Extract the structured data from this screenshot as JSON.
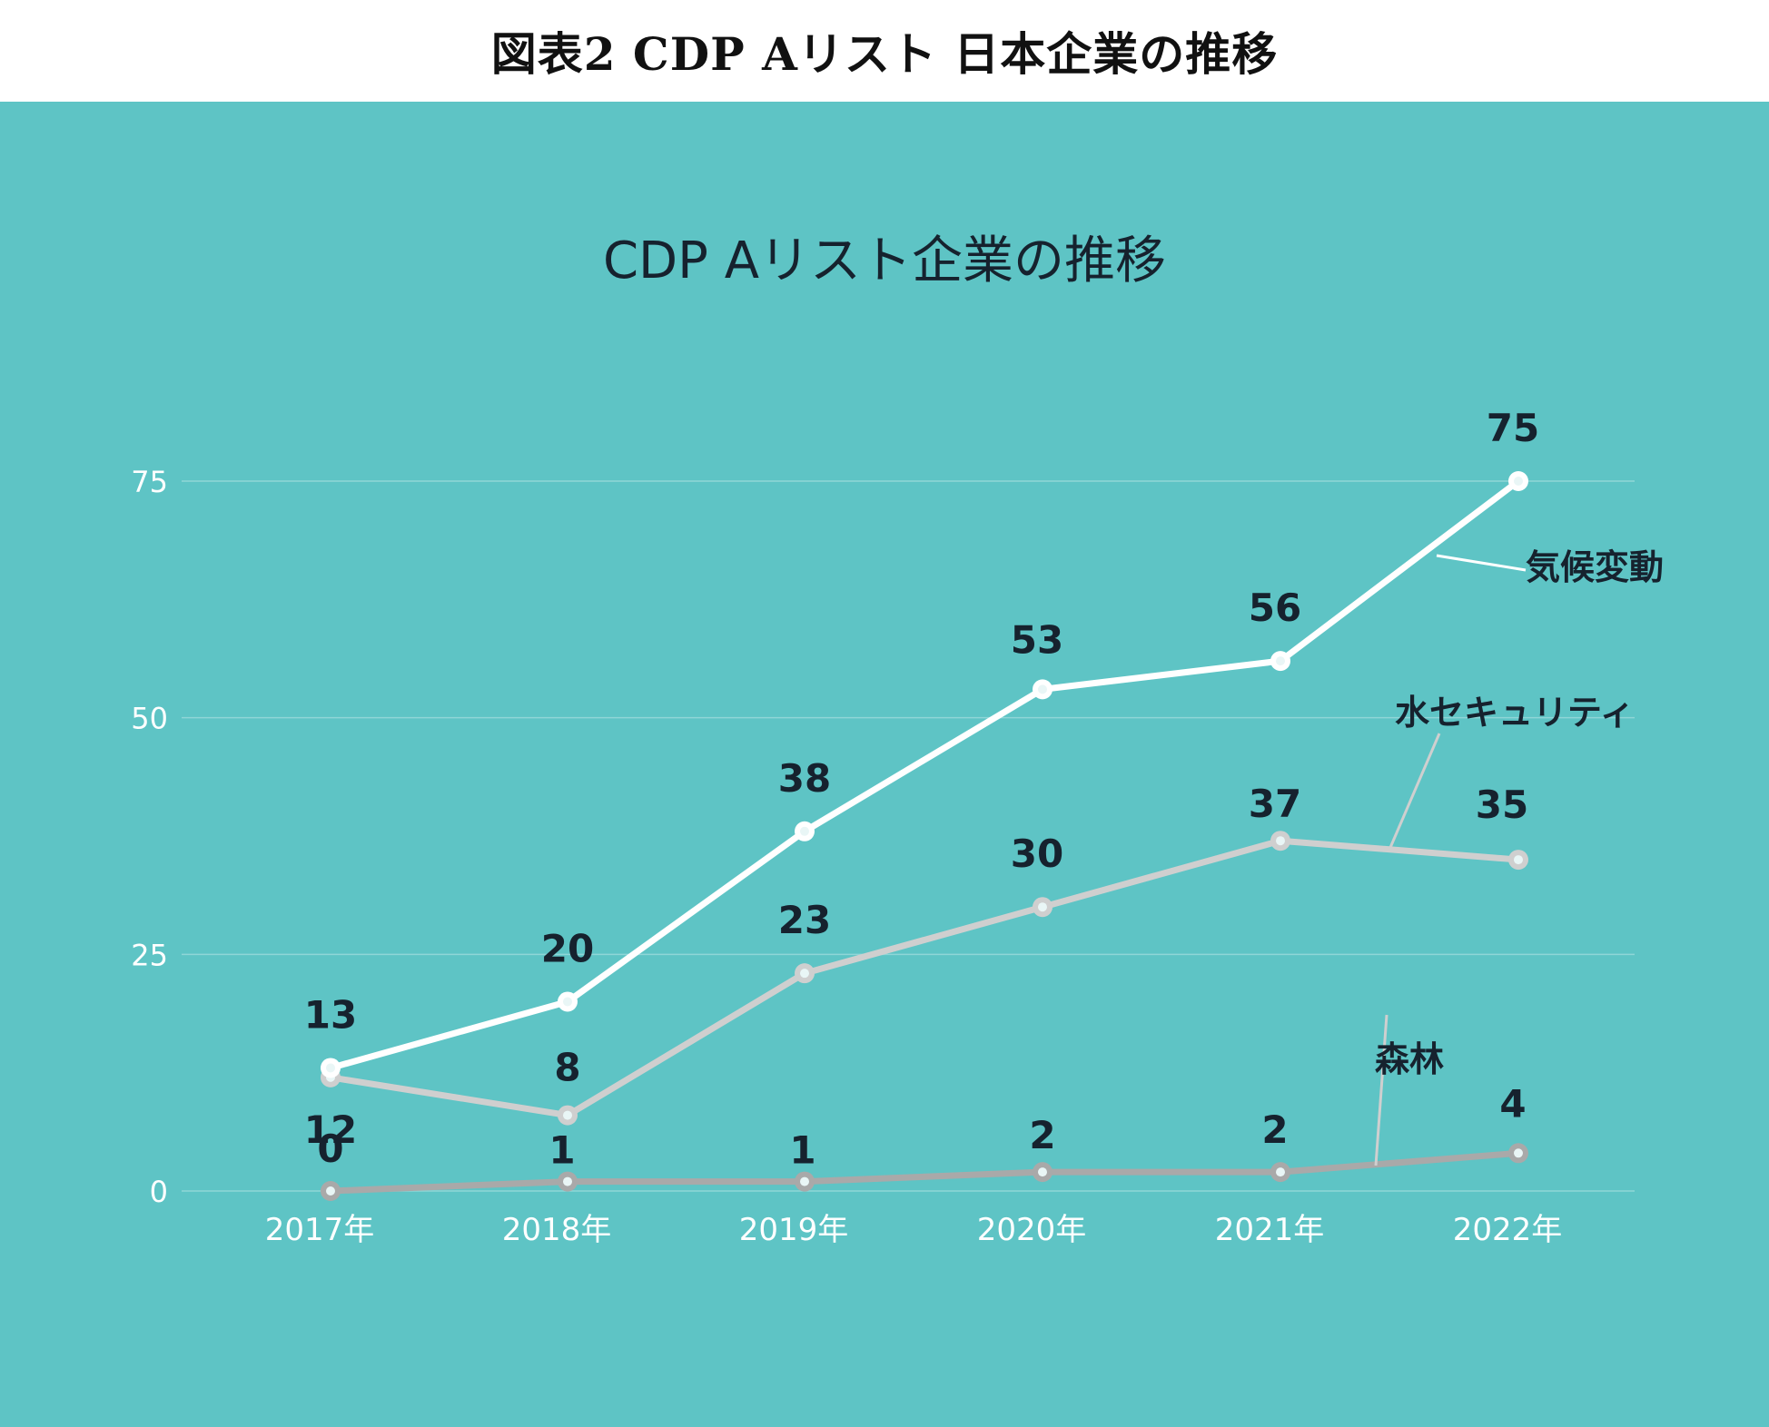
{
  "figure_title": "図表2  CDP Aリスト 日本企業の推移",
  "colors": {
    "background": "#5ec4c5",
    "climate": "#ffffff",
    "water": "#cfcfcf",
    "forest": "#a9a9a9",
    "value_label": "#16222e",
    "grid": "#8fd6d7",
    "tick_label": "#ffffff"
  },
  "chart_data": {
    "type": "line",
    "title": "CDP Aリスト企業の推移",
    "categories": [
      "2017年",
      "2018年",
      "2019年",
      "2020年",
      "2021年",
      "2022年"
    ],
    "yticks": [
      "0",
      "25",
      "50",
      "75"
    ],
    "ylim": [
      0,
      75
    ],
    "grid": true,
    "series": [
      {
        "key": "climate",
        "name": "気候変動",
        "values": [
          13,
          20,
          38,
          53,
          56,
          75
        ]
      },
      {
        "key": "water",
        "name": "水セキュリティ",
        "values": [
          12,
          8,
          23,
          30,
          37,
          35
        ]
      },
      {
        "key": "forest",
        "name": "森林",
        "values": [
          0,
          1,
          1,
          2,
          2,
          4
        ]
      }
    ]
  }
}
